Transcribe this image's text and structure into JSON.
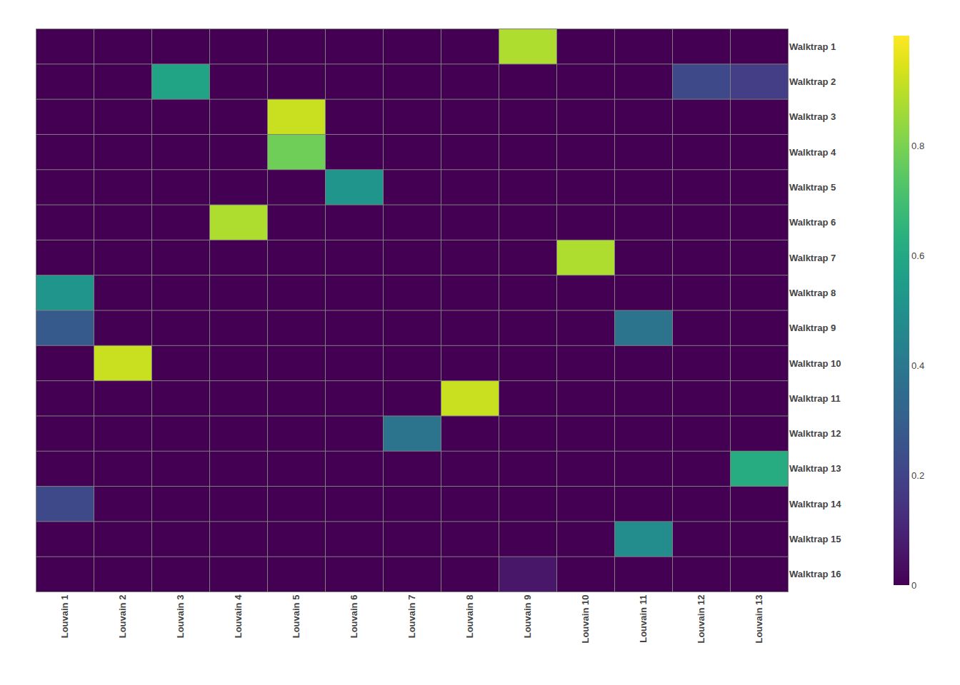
{
  "chart_data": {
    "type": "heatmap",
    "x": [
      "Louvain 1",
      "Louvain 2",
      "Louvain 3",
      "Louvain 4",
      "Louvain 5",
      "Louvain 6",
      "Louvain 7",
      "Louvain 8",
      "Louvain 9",
      "Louvain 10",
      "Louvain 11",
      "Louvain 12",
      "Louvain 13"
    ],
    "categories": [
      "Walktrap 1",
      "Walktrap 2",
      "Walktrap 3",
      "Walktrap 4",
      "Walktrap 5",
      "Walktrap 6",
      "Walktrap 7",
      "Walktrap 8",
      "Walktrap 9",
      "Walktrap 10",
      "Walktrap 11",
      "Walktrap 12",
      "Walktrap 13",
      "Walktrap 14",
      "Walktrap 15",
      "Walktrap 16"
    ],
    "values": [
      [
        0.0,
        0.0,
        0.0,
        0.0,
        0.0,
        0.0,
        0.0,
        0.0,
        0.88,
        0.0,
        0.0,
        0.0,
        0.0
      ],
      [
        0.0,
        0.0,
        0.58,
        0.0,
        0.0,
        0.0,
        0.0,
        0.0,
        0.0,
        0.0,
        0.0,
        0.22,
        0.18
      ],
      [
        0.0,
        0.0,
        0.0,
        0.0,
        0.92,
        0.0,
        0.0,
        0.0,
        0.0,
        0.0,
        0.0,
        0.0,
        0.0
      ],
      [
        0.0,
        0.0,
        0.0,
        0.0,
        0.78,
        0.0,
        0.0,
        0.0,
        0.0,
        0.0,
        0.0,
        0.0,
        0.0
      ],
      [
        0.0,
        0.0,
        0.0,
        0.0,
        0.0,
        0.52,
        0.0,
        0.0,
        0.0,
        0.0,
        0.0,
        0.0,
        0.0
      ],
      [
        0.0,
        0.0,
        0.0,
        0.88,
        0.0,
        0.0,
        0.0,
        0.0,
        0.0,
        0.0,
        0.0,
        0.0,
        0.0
      ],
      [
        0.0,
        0.0,
        0.0,
        0.0,
        0.0,
        0.0,
        0.0,
        0.0,
        0.0,
        0.88,
        0.0,
        0.0,
        0.0
      ],
      [
        0.52,
        0.0,
        0.0,
        0.0,
        0.0,
        0.0,
        0.0,
        0.0,
        0.0,
        0.0,
        0.0,
        0.0,
        0.0
      ],
      [
        0.28,
        0.0,
        0.0,
        0.0,
        0.0,
        0.0,
        0.0,
        0.0,
        0.0,
        0.0,
        0.38,
        0.0,
        0.0
      ],
      [
        0.0,
        0.92,
        0.0,
        0.0,
        0.0,
        0.0,
        0.0,
        0.0,
        0.0,
        0.0,
        0.0,
        0.0,
        0.0
      ],
      [
        0.0,
        0.0,
        0.0,
        0.0,
        0.0,
        0.0,
        0.0,
        0.92,
        0.0,
        0.0,
        0.0,
        0.0,
        0.0
      ],
      [
        0.0,
        0.0,
        0.0,
        0.0,
        0.0,
        0.0,
        0.38,
        0.0,
        0.0,
        0.0,
        0.0,
        0.0,
        0.0
      ],
      [
        0.0,
        0.0,
        0.0,
        0.0,
        0.0,
        0.0,
        0.0,
        0.0,
        0.0,
        0.0,
        0.0,
        0.0,
        0.62
      ],
      [
        0.22,
        0.0,
        0.0,
        0.0,
        0.0,
        0.0,
        0.0,
        0.0,
        0.0,
        0.0,
        0.0,
        0.0,
        0.0
      ],
      [
        0.0,
        0.0,
        0.0,
        0.0,
        0.0,
        0.0,
        0.0,
        0.0,
        0.0,
        0.0,
        0.48,
        0.0,
        0.0
      ],
      [
        0.0,
        0.0,
        0.0,
        0.0,
        0.0,
        0.0,
        0.0,
        0.0,
        0.06,
        0.0,
        0.0,
        0.0,
        0.0
      ]
    ],
    "color": "Viridis",
    "zlim": [
      0.0,
      1.0
    ],
    "zticks": [
      0,
      0.2,
      0.4,
      0.6,
      0.8
    ],
    "grid": true
  }
}
